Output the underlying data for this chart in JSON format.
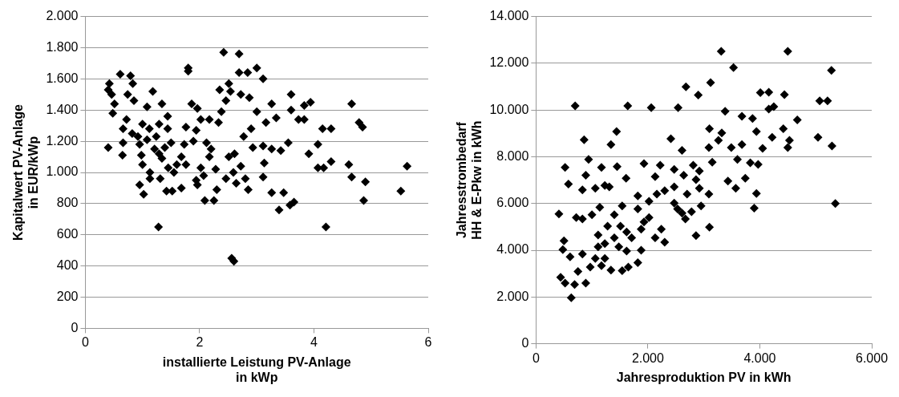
{
  "chart_data": [
    {
      "type": "scatter",
      "xlabel": "installierte Leistung PV-Anlage\nin kWp",
      "ylabel": "Kapitalwert PV-Anlage\nin EUR/kWp",
      "xlim": [
        0,
        6
      ],
      "xticks": [
        0,
        2,
        4,
        6
      ],
      "ylim": [
        0,
        2000
      ],
      "yticks": [
        0,
        200,
        400,
        600,
        800,
        {
          "value": 1000,
          "label": "1.000"
        },
        {
          "value": 1200,
          "label": "1.200"
        },
        {
          "value": 1400,
          "label": "1.400"
        },
        {
          "value": 1600,
          "label": "1.600"
        },
        {
          "value": 1800,
          "label": "1.800"
        },
        {
          "value": 2000,
          "label": "2.000"
        }
      ],
      "grid": "y",
      "legend": false,
      "marker": "diamond",
      "color": "#000000",
      "x": [
        2.42,
        2.69,
        1.8,
        1.8,
        0.61,
        0.79,
        0.83,
        0.42,
        0.4,
        0.46,
        0.74,
        0.85,
        1.18,
        1.34,
        0.51,
        0.48,
        0.72,
        0.66,
        1.08,
        1.0,
        1.12,
        1.24,
        0.92,
        1.44,
        1.44,
        1.29,
        1.39,
        0.66,
        0.4,
        0.65,
        0.98,
        1.0,
        1.13,
        1.13,
        1.31,
        0.95,
        1.02,
        1.42,
        1.52,
        1.68,
        1.45,
        1.55,
        1.68,
        1.76,
        1.73,
        1.76,
        1.86,
        1.96,
        1.94,
        1.89,
        2.02,
        2.17,
        2.33,
        2.38,
        2.35,
        2.46,
        2.54,
        2.51,
        2.69,
        2.84,
        3.0,
        3.11,
        2.72,
        2.87,
        3.0,
        2.9,
        2.77,
        2.93,
        3.11,
        3.26,
        3.16,
        3.34,
        3.26,
        3.42,
        3.55,
        3.6,
        3.6,
        3.73,
        3.83,
        3.83,
        3.94,
        3.91,
        4.07,
        4.15,
        4.3,
        4.07,
        4.17,
        4.3,
        4.66,
        4.79,
        4.85,
        4.61,
        4.66,
        4.9,
        4.87,
        5.63,
        5.52,
        3.26,
        3.47,
        3.39,
        3.58,
        3.65,
        3.11,
        3.13,
        2.8,
        2.85,
        2.64,
        2.46,
        2.59,
        2.72,
        2.51,
        2.61,
        2.28,
        2.3,
        2.25,
        2.09,
        2.07,
        2.02,
        1.94,
        1.96,
        2.17,
        2.12,
        2.2,
        1.28,
        4.21,
        2.56,
        2.6,
        0.95,
        1.08,
        1.21,
        1.34,
        1.5,
        1.6,
        0.82,
        1.29
      ],
      "values": [
        1770,
        1760,
        1670,
        1650,
        1630,
        1620,
        1570,
        1570,
        1530,
        1500,
        1500,
        1460,
        1520,
        1440,
        1440,
        1380,
        1340,
        1280,
        1420,
        1310,
        1280,
        1230,
        1230,
        1360,
        1280,
        1120,
        1160,
        1190,
        1160,
        1110,
        1110,
        1050,
        1000,
        960,
        960,
        920,
        860,
        880,
        880,
        900,
        1030,
        1000,
        1100,
        1050,
        1180,
        1290,
        1440,
        1410,
        1270,
        1200,
        1340,
        1340,
        1320,
        1390,
        1530,
        1460,
        1520,
        1570,
        1640,
        1640,
        1670,
        1600,
        1500,
        1480,
        1390,
        1280,
        1230,
        1160,
        1170,
        1440,
        1320,
        1350,
        1150,
        1140,
        1190,
        1500,
        1400,
        1340,
        1340,
        1430,
        1450,
        1120,
        1180,
        1280,
        1280,
        1030,
        1030,
        1070,
        1440,
        1320,
        1290,
        1050,
        970,
        940,
        820,
        1040,
        880,
        870,
        870,
        760,
        790,
        810,
        970,
        1060,
        960,
        890,
        930,
        960,
        1000,
        1040,
        1100,
        1120,
        1020,
        890,
        820,
        820,
        980,
        1030,
        950,
        920,
        1100,
        1190,
        1150,
        650,
        650,
        450,
        430,
        1180,
        1210,
        1150,
        1090,
        1190,
        1050,
        1250,
        1310
      ]
    },
    {
      "type": "scatter",
      "xlabel": "Jahresproduktion PV in kWh",
      "ylabel": "Jahresstrombedarf\nHH & E-Pkw in kWh",
      "xlim": [
        0,
        6000
      ],
      "xticks": [
        0,
        {
          "value": 2000,
          "label": "2.000"
        },
        {
          "value": 4000,
          "label": "4.000"
        },
        {
          "value": 6000,
          "label": "6.000"
        }
      ],
      "ylim": [
        0,
        14000
      ],
      "yticks": [
        0,
        {
          "value": 2000,
          "label": "2.000"
        },
        {
          "value": 4000,
          "label": "4.000"
        },
        {
          "value": 6000,
          "label": "6.000"
        },
        {
          "value": 8000,
          "label": "8.000"
        },
        {
          "value": 10000,
          "label": "10.000"
        },
        {
          "value": 12000,
          "label": "12.000"
        },
        {
          "value": 14000,
          "label": "14.000"
        }
      ],
      "grid": "y",
      "legend": false,
      "marker": "diamond",
      "color": "#000000",
      "x": [
        3310,
        4500,
        3530,
        5280,
        2680,
        3120,
        2900,
        700,
        1640,
        2060,
        2540,
        3380,
        4010,
        4160,
        4440,
        4250,
        4160,
        5070,
        5210,
        3680,
        3870,
        4670,
        4420,
        3940,
        3100,
        3320,
        3260,
        3090,
        3490,
        3680,
        4220,
        4530,
        4500,
        5040,
        5290,
        4050,
        3600,
        3830,
        3970,
        3150,
        2920,
        2810,
        2640,
        2470,
        2610,
        2410,
        2220,
        1930,
        2130,
        1610,
        1450,
        1170,
        860,
        1440,
        1340,
        940,
        890,
        520,
        580,
        830,
        1060,
        1230,
        1310,
        1820,
        2020,
        2160,
        2300,
        2470,
        2470,
        2700,
        2860,
        3090,
        2950,
        2780,
        2670,
        3430,
        3570,
        3740,
        3940,
        3900,
        5350,
        2860,
        3100,
        2240,
        2300,
        2130,
        1930,
        1880,
        1820,
        1540,
        1400,
        1140,
        1000,
        720,
        830,
        410,
        500,
        480,
        610,
        830,
        1110,
        1230,
        1400,
        1480,
        1620,
        1710,
        1620,
        1880,
        1820,
        1650,
        1540,
        1340,
        1170,
        970,
        1060,
        1230,
        440,
        520,
        690,
        890,
        630,
        750,
        1110,
        1280,
        1510,
        2020,
        2530,
        2610,
        2920
      ],
      "values": [
        12510,
        12510,
        11820,
        11700,
        10990,
        11170,
        10640,
        10180,
        10180,
        10100,
        10100,
        9950,
        10740,
        10760,
        10660,
        10140,
        10040,
        10390,
        10390,
        9730,
        9640,
        9580,
        9200,
        9080,
        9200,
        9020,
        8700,
        8390,
        8390,
        8520,
        8830,
        8700,
        8390,
        8830,
        8460,
        8360,
        7890,
        7740,
        7670,
        7770,
        7390,
        7640,
        7210,
        7460,
        8270,
        8770,
        7640,
        7710,
        7150,
        7080,
        7580,
        7540,
        8730,
        9080,
        8520,
        7890,
        7210,
        7540,
        6830,
        6580,
        6650,
        6770,
        6710,
        6330,
        6090,
        6400,
        6550,
        6710,
        6020,
        6400,
        7020,
        6400,
        5900,
        5650,
        5340,
        6960,
        6650,
        7080,
        6430,
        5800,
        6000,
        4630,
        4990,
        4900,
        4340,
        4530,
        5210,
        4900,
        5770,
        5900,
        5520,
        5840,
        5520,
        5400,
        5340,
        5550,
        4400,
        4030,
        3720,
        3840,
        4650,
        4280,
        4530,
        4150,
        4780,
        4530,
        3970,
        4000,
        3470,
        3280,
        3130,
        3150,
        3340,
        3280,
        3650,
        3650,
        2840,
        2590,
        2530,
        2590,
        1970,
        3090,
        4150,
        5030,
        5030,
        5400,
        5770,
        5590,
        6650
      ]
    }
  ]
}
